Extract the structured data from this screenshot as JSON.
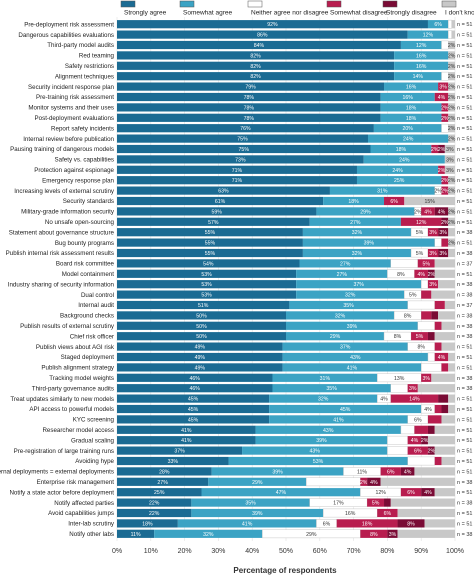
{
  "chart_data": {
    "type": "bar",
    "stacked": true,
    "orientation": "horizontal",
    "xlabel": "Percentage of respondents",
    "xlim": [
      0,
      100
    ],
    "x_ticks": [
      "0%",
      "10%",
      "20%",
      "30%",
      "40%",
      "50%",
      "60%",
      "70%",
      "80%",
      "90%",
      "100%"
    ],
    "legend_position": "top",
    "series": [
      {
        "name": "Strongly agree",
        "color": "#1b6b93"
      },
      {
        "name": "Somewhat agree",
        "color": "#3ba3c4"
      },
      {
        "name": "Neither agree nor disagree",
        "color": "#ffffff"
      },
      {
        "name": "Somewhat disagree",
        "color": "#b81d4f"
      },
      {
        "name": "Strongly disagree",
        "color": "#7a0b35"
      },
      {
        "name": "I don't know",
        "color": "#c8c8c8"
      }
    ],
    "rows": [
      {
        "label": "Pre-deployment risk assessment",
        "values": [
          92,
          6,
          1,
          0,
          0,
          1
        ],
        "labels": [
          "92%",
          "6%",
          "",
          "",
          "",
          ""
        ],
        "n": "n = 51"
      },
      {
        "label": "Dangerous capabilities evaluations",
        "values": [
          86,
          12,
          1,
          0,
          0,
          1
        ],
        "labels": [
          "86%",
          "12%",
          "",
          "",
          "",
          ""
        ],
        "n": "n = 51"
      },
      {
        "label": "Third-party model audits",
        "values": [
          84,
          12,
          2,
          0,
          0,
          2
        ],
        "labels": [
          "84%",
          "12%",
          "",
          "",
          "",
          "2%"
        ],
        "n": "n = 51"
      },
      {
        "label": "Red teaming",
        "values": [
          82,
          16,
          0,
          0,
          0,
          2
        ],
        "labels": [
          "82%",
          "16%",
          "",
          "",
          "",
          "2%"
        ],
        "n": "n = 51"
      },
      {
        "label": "Safety restrictions",
        "values": [
          82,
          16,
          0,
          0,
          0,
          2
        ],
        "labels": [
          "82%",
          "16%",
          "",
          "",
          "",
          "2%"
        ],
        "n": "n = 51"
      },
      {
        "label": "Alignment techniques",
        "values": [
          82,
          14,
          2,
          0,
          0,
          2
        ],
        "labels": [
          "82%",
          "14%",
          "",
          "",
          "",
          "2%"
        ],
        "n": "n = 51"
      },
      {
        "label": "Security incident response plan",
        "values": [
          79,
          16,
          0,
          3,
          0,
          2
        ],
        "labels": [
          "79%",
          "16%",
          "",
          "3%",
          "",
          "2%"
        ],
        "n": "n = 51"
      },
      {
        "label": "Pre-training risk assessment",
        "values": [
          78,
          16,
          0,
          4,
          0,
          2
        ],
        "labels": [
          "78%",
          "16%",
          "",
          "4%",
          "",
          "2%"
        ],
        "n": "n = 51"
      },
      {
        "label": "Monitor systems and their uses",
        "values": [
          78,
          18,
          0,
          2,
          0,
          2
        ],
        "labels": [
          "78%",
          "18%",
          "",
          "2%",
          "",
          "2%"
        ],
        "n": "n = 51"
      },
      {
        "label": "Post-deployment evaluations",
        "values": [
          78,
          18,
          0,
          2,
          0,
          2
        ],
        "labels": [
          "78%",
          "18%",
          "",
          "2%",
          "",
          "2%"
        ],
        "n": "n = 51"
      },
      {
        "label": "Report safety incidents",
        "values": [
          76,
          20,
          2,
          0,
          0,
          2
        ],
        "labels": [
          "76%",
          "20%",
          "",
          "",
          "",
          "2%"
        ],
        "n": "n = 51"
      },
      {
        "label": "Internal review before publication",
        "values": [
          75,
          24,
          0,
          0,
          0,
          2
        ],
        "labels": [
          "75%",
          "24%",
          "",
          "",
          "",
          "2%"
        ],
        "n": "n = 51"
      },
      {
        "label": "Pausing training of dangerous models",
        "values": [
          75,
          18,
          0,
          2,
          2,
          3
        ],
        "labels": [
          "75%",
          "18%",
          "",
          "2%",
          "2%",
          "3%"
        ],
        "n": "n = 51"
      },
      {
        "label": "Safety vs. capabilities",
        "values": [
          73,
          24,
          0,
          0,
          0,
          3
        ],
        "labels": [
          "73%",
          "24%",
          "",
          "",
          "",
          "3%"
        ],
        "n": "n = 51"
      },
      {
        "label": "Protection against espionage",
        "values": [
          71,
          24,
          0,
          2,
          0,
          3
        ],
        "labels": [
          "71%",
          "24%",
          "",
          "2%",
          "",
          "3%"
        ],
        "n": "n = 51"
      },
      {
        "label": "Emergency response plan",
        "values": [
          71,
          25,
          0,
          2,
          0,
          2
        ],
        "labels": [
          "71%",
          "25%",
          "",
          "2%",
          "",
          "2%"
        ],
        "n": "n = 51"
      },
      {
        "label": "Increasing levels of external scrutiny",
        "values": [
          63,
          31,
          2,
          2,
          0,
          2
        ],
        "labels": [
          "63%",
          "31%",
          "2%",
          "2%",
          "",
          "2%"
        ],
        "n": "n = 51"
      },
      {
        "label": "Security standards",
        "values": [
          61,
          18,
          0,
          6,
          0,
          15
        ],
        "labels": [
          "61%",
          "18%",
          "",
          "6%",
          "",
          "15%"
        ],
        "n": "n = 51"
      },
      {
        "label": "Military-grade information security",
        "values": [
          59,
          29,
          2,
          4,
          4,
          2
        ],
        "labels": [
          "59%",
          "29%",
          "2%",
          "4%",
          "4%",
          "2%"
        ],
        "n": "n = 51"
      },
      {
        "label": "No unsafe open-sourcing",
        "values": [
          57,
          27,
          0,
          12,
          2,
          2
        ],
        "labels": [
          "57%",
          "27%",
          "",
          "12%",
          "2%",
          "2%"
        ],
        "n": "n = 51"
      },
      {
        "label": "Statement about governance structure",
        "values": [
          55,
          32,
          5,
          3,
          3,
          2
        ],
        "labels": [
          "55%",
          "32%",
          "5%",
          "3%",
          "3%",
          ""
        ],
        "n": "n = 38"
      },
      {
        "label": "Bug bounty programs",
        "values": [
          55,
          39,
          2,
          2,
          0,
          2
        ],
        "labels": [
          "55%",
          "39%",
          "",
          "",
          "",
          "2%"
        ],
        "n": "n = 51"
      },
      {
        "label": "Publish internal risk assessment results",
        "values": [
          55,
          32,
          5,
          3,
          3,
          2
        ],
        "labels": [
          "55%",
          "32%",
          "5%",
          "3%",
          "3%",
          ""
        ],
        "n": "n = 38"
      },
      {
        "label": "Board risk committee",
        "values": [
          54,
          27,
          8,
          5,
          0,
          6
        ],
        "labels": [
          "54%",
          "27%",
          "",
          "5%",
          "",
          ""
        ],
        "n": "n = 37"
      },
      {
        "label": "Model containment",
        "values": [
          53,
          27,
          8,
          4,
          2,
          6
        ],
        "labels": [
          "53%",
          "27%",
          "8%",
          "4%",
          "2%",
          ""
        ],
        "n": "n = 51"
      },
      {
        "label": "Industry sharing of security information",
        "values": [
          53,
          37,
          2,
          3,
          0,
          5
        ],
        "labels": [
          "53%",
          "37%",
          "",
          "3%",
          "",
          ""
        ],
        "n": "n = 38"
      },
      {
        "label": "Dual control",
        "values": [
          53,
          32,
          5,
          3,
          0,
          7
        ],
        "labels": [
          "53%",
          "32%",
          "5%",
          "",
          "",
          ""
        ],
        "n": "n = 38"
      },
      {
        "label": "Internal audit",
        "values": [
          51,
          35,
          8,
          3,
          0,
          3
        ],
        "labels": [
          "51%",
          "35%",
          "",
          "",
          "",
          ""
        ],
        "n": "n = 37"
      },
      {
        "label": "Background checks",
        "values": [
          50,
          32,
          8,
          3,
          2,
          5
        ],
        "labels": [
          "50%",
          "32%",
          "8%",
          "",
          "",
          ""
        ],
        "n": "n = 38"
      },
      {
        "label": "Publish results of external scrutiny",
        "values": [
          50,
          39,
          5,
          2,
          0,
          4
        ],
        "labels": [
          "50%",
          "39%",
          "",
          "",
          "",
          ""
        ],
        "n": "n = 38"
      },
      {
        "label": "Chief risk officer",
        "values": [
          50,
          29,
          8,
          5,
          2,
          6
        ],
        "labels": [
          "50%",
          "29%",
          "8%",
          "5%",
          "",
          ""
        ],
        "n": "n = 38"
      },
      {
        "label": "Publish views about AGI risk",
        "values": [
          49,
          37,
          8,
          2,
          0,
          4
        ],
        "labels": [
          "49%",
          "37%",
          "8%",
          "",
          "",
          ""
        ],
        "n": "n = 51"
      },
      {
        "label": "Staged deployment",
        "values": [
          49,
          43,
          2,
          4,
          0,
          2
        ],
        "labels": [
          "49%",
          "43%",
          "",
          "4%",
          "",
          ""
        ],
        "n": "n = 51"
      },
      {
        "label": "Publish alignment strategy",
        "values": [
          49,
          41,
          6,
          2,
          0,
          2
        ],
        "labels": [
          "49%",
          "41%",
          "",
          "",
          "",
          ""
        ],
        "n": "n = 51"
      },
      {
        "label": "Tracking model weights",
        "values": [
          46,
          31,
          13,
          3,
          0,
          7
        ],
        "labels": [
          "46%",
          "31%",
          "13%",
          "3%",
          "",
          ""
        ],
        "n": "n = 38"
      },
      {
        "label": "Third-party governance audits",
        "values": [
          46,
          35,
          5,
          3,
          0,
          11
        ],
        "labels": [
          "46%",
          "35%",
          "",
          "3%",
          "",
          ""
        ],
        "n": "n = 38"
      },
      {
        "label": "Treat updates similarly to new models",
        "values": [
          45,
          32,
          4,
          14,
          3,
          2
        ],
        "labels": [
          "45%",
          "32%",
          "4%",
          "14%",
          "",
          ""
        ],
        "n": "n = 51"
      },
      {
        "label": "API access to powerful models",
        "values": [
          45,
          45,
          4,
          2,
          2,
          2
        ],
        "labels": [
          "45%",
          "45%",
          "4%",
          "",
          "",
          ""
        ],
        "n": "n = 51"
      },
      {
        "label": "KYC screening",
        "values": [
          45,
          41,
          6,
          4,
          0,
          4
        ],
        "labels": [
          "45%",
          "41%",
          "6%",
          "",
          "",
          ""
        ],
        "n": "n = 51"
      },
      {
        "label": "Researcher model access",
        "values": [
          41,
          43,
          4,
          4,
          2,
          6
        ],
        "labels": [
          "41%",
          "43%",
          "",
          "",
          "",
          ""
        ],
        "n": "n = 51"
      },
      {
        "label": "Gradual scaling",
        "values": [
          41,
          39,
          6,
          4,
          2,
          8
        ],
        "labels": [
          "41%",
          "39%",
          "",
          "4%",
          "2%",
          ""
        ],
        "n": "n = 51"
      },
      {
        "label": "Pre-registration of large training runs",
        "values": [
          37,
          43,
          6,
          6,
          2,
          6
        ],
        "labels": [
          "37%",
          "43%",
          "",
          "6%",
          "2%",
          ""
        ],
        "n": "n = 51"
      },
      {
        "label": "Avoiding hype",
        "values": [
          33,
          53,
          8,
          2,
          0,
          4
        ],
        "labels": [
          "33%",
          "53%",
          "",
          "",
          "",
          ""
        ],
        "n": "n = 51"
      },
      {
        "label": "External deployments = external deployments",
        "values": [
          28,
          39,
          11,
          6,
          4,
          12
        ],
        "labels": [
          "28%",
          "39%",
          "11%",
          "6%",
          "4%",
          ""
        ],
        "n": "n = 51"
      },
      {
        "label": "Enterprise risk management",
        "values": [
          27,
          29,
          16,
          2,
          4,
          22
        ],
        "labels": [
          "27%",
          "29%",
          "",
          "2%",
          "4%",
          ""
        ],
        "n": "n = 38"
      },
      {
        "label": "Notify a state actor before deployment",
        "values": [
          25,
          47,
          12,
          6,
          4,
          6
        ],
        "labels": [
          "25%",
          "47%",
          "12%",
          "6%",
          "4%",
          ""
        ],
        "n": "n = 51"
      },
      {
        "label": "Notify affected parties",
        "values": [
          22,
          35,
          17,
          5,
          2,
          19
        ],
        "labels": [
          "22%",
          "35%",
          "17%",
          "5%",
          "",
          ""
        ],
        "n": "n = 38"
      },
      {
        "label": "Avoid capabilities jumps",
        "values": [
          22,
          39,
          16,
          6,
          0,
          17
        ],
        "labels": [
          "22%",
          "39%",
          "16%",
          "6%",
          "",
          ""
        ],
        "n": "n = 51"
      },
      {
        "label": "Inter-lab scrutiny",
        "values": [
          18,
          41,
          6,
          18,
          8,
          9
        ],
        "labels": [
          "18%",
          "41%",
          "6%",
          "18%",
          "8%",
          ""
        ],
        "n": "n = 51"
      },
      {
        "label": "Notify other labs",
        "values": [
          11,
          32,
          29,
          8,
          3,
          17
        ],
        "labels": [
          "11%",
          "32%",
          "29%",
          "8%",
          "3%",
          ""
        ],
        "n": "n = 38"
      }
    ]
  }
}
